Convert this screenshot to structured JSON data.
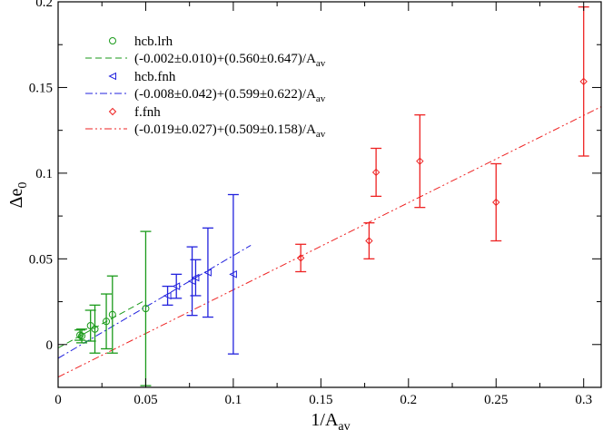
{
  "chart_data": {
    "type": "scatter",
    "xlabel_main": "1/A",
    "xlabel_sub": "av",
    "ylabel_main": "Δe",
    "ylabel_sub": "0",
    "xlim": [
      0,
      0.31
    ],
    "ylim": [
      -0.025,
      0.2
    ],
    "x_ticks": [
      0,
      0.05,
      0.1,
      0.15,
      0.2,
      0.25,
      0.3
    ],
    "x_tick_labels": [
      "0",
      "0.05",
      "0.1",
      "0.15",
      "0.2",
      "0.25",
      "0.3"
    ],
    "y_ticks": [
      0,
      0.05,
      0.1,
      0.15,
      0.2
    ],
    "y_tick_labels": [
      "0",
      "0.05",
      "0.1",
      "0.15",
      "0.2"
    ],
    "grid": false,
    "legend_position": "top-left",
    "series": [
      {
        "name": "hcb.lrh",
        "marker": "circle",
        "color": "#1a9a1a",
        "points": [
          {
            "x": 0.0125,
            "y": 0.0055,
            "err": 0.003
          },
          {
            "x": 0.0135,
            "y": 0.005,
            "err": 0.004
          },
          {
            "x": 0.0185,
            "y": 0.011,
            "err": 0.009
          },
          {
            "x": 0.021,
            "y": 0.009,
            "err": 0.014
          },
          {
            "x": 0.0275,
            "y": 0.0135,
            "err": 0.016
          },
          {
            "x": 0.031,
            "y": 0.0175,
            "err": 0.0225
          },
          {
            "x": 0.05,
            "y": 0.021,
            "err": 0.045
          }
        ]
      },
      {
        "name": "hcb.fnh",
        "marker": "triangle-left",
        "color": "#2222dd",
        "points": [
          {
            "x": 0.0625,
            "y": 0.0285,
            "err": 0.0055
          },
          {
            "x": 0.0675,
            "y": 0.034,
            "err": 0.007
          },
          {
            "x": 0.0765,
            "y": 0.037,
            "err": 0.02
          },
          {
            "x": 0.0785,
            "y": 0.039,
            "err": 0.0105
          },
          {
            "x": 0.0855,
            "y": 0.042,
            "err": 0.026
          },
          {
            "x": 0.1,
            "y": 0.041,
            "err": 0.0465
          }
        ]
      },
      {
        "name": "f.fnh",
        "marker": "diamond",
        "color": "#ee2222",
        "points": [
          {
            "x": 0.1385,
            "y": 0.0505,
            "err": 0.008
          },
          {
            "x": 0.1775,
            "y": 0.0605,
            "err": 0.0105
          },
          {
            "x": 0.1815,
            "y": 0.1005,
            "err": 0.014
          },
          {
            "x": 0.2065,
            "y": 0.107,
            "err": 0.027
          },
          {
            "x": 0.25,
            "y": 0.083,
            "err": 0.0225
          },
          {
            "x": 0.3,
            "y": 0.1535,
            "err": 0.0435
          }
        ]
      }
    ],
    "fits": [
      {
        "label_main": "(-0.002±0.010)+(0.560±0.647)/A",
        "label_sub": "av",
        "color": "#1a9a1a",
        "style": "dashed",
        "intercept": -0.002,
        "slope": 0.56,
        "x_range": [
          0,
          0.05
        ]
      },
      {
        "label_main": "(-0.008±0.042)+(0.599±0.622)/A",
        "label_sub": "av",
        "color": "#2222dd",
        "style": "dash-dot",
        "intercept": -0.008,
        "slope": 0.599,
        "x_range": [
          0,
          0.11
        ]
      },
      {
        "label_main": "(-0.019±0.027)+(0.509±0.158)/A",
        "label_sub": "av",
        "color": "#ee2222",
        "style": "dash-dot-dot",
        "intercept": -0.019,
        "slope": 0.509,
        "x_range": [
          0,
          0.31
        ]
      }
    ]
  }
}
